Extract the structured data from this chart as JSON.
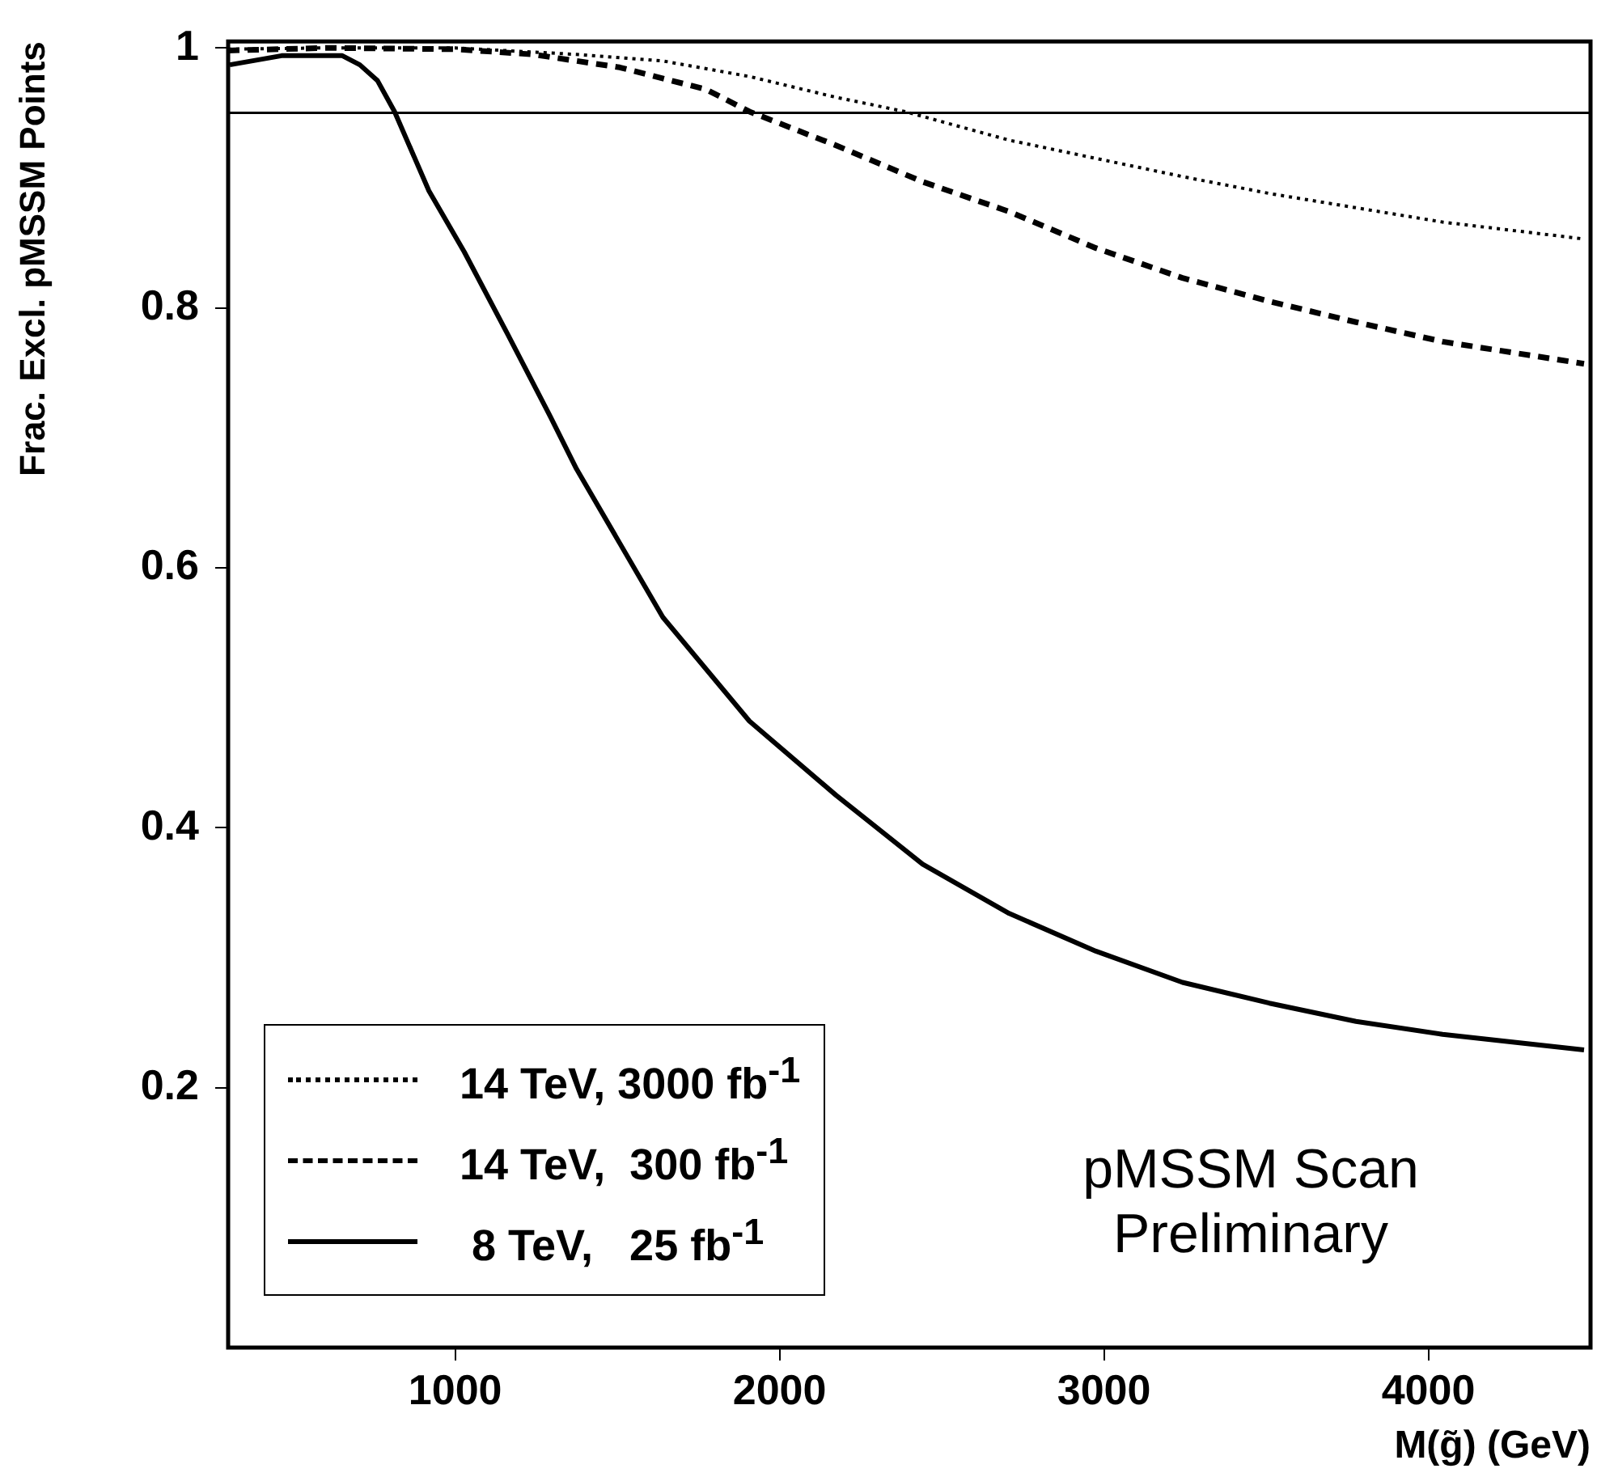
{
  "chart_data": {
    "type": "line",
    "xlabel": "M(g̃) (GeV)",
    "ylabel": "Frac. Excl. pMSSM Points",
    "xlim": [
      300,
      4500
    ],
    "xticks": [
      1000,
      2000,
      3000,
      4000
    ],
    "ylim": [
      0,
      1.005
    ],
    "yticks": [
      0.2,
      0.4,
      0.6,
      0.8,
      1
    ],
    "grid": false,
    "legend": "bottom left",
    "marker": "none",
    "ref_lines": [
      {
        "axis": "y",
        "value": 0.95,
        "color": "#000000"
      }
    ],
    "annotations": [
      "pMSSM Scan Preliminary"
    ],
    "series": [
      {
        "name": "14 TeV, 3000 fb$^{-1}$",
        "color": "#000000",
        "line_style": "dotted",
        "x": [
          300,
          600,
          1000,
          1374,
          1640,
          1907,
          2174,
          2387,
          2708,
          2975,
          3242,
          3510,
          3777,
          4044,
          4480
        ],
        "values": [
          0.999,
          1.0,
          1.0,
          0.995,
          0.99,
          0.978,
          0.962,
          0.951,
          0.929,
          0.915,
          0.901,
          0.888,
          0.877,
          0.866,
          0.853
        ]
      },
      {
        "name": "14 TeV,  300 fb$^{-1}$",
        "color": "#000000",
        "line_style": "dashed",
        "x": [
          300,
          600,
          1000,
          1240,
          1507,
          1774,
          1907,
          2174,
          2441,
          2708,
          2975,
          3242,
          3510,
          3777,
          4044,
          4480
        ],
        "values": [
          0.998,
          1.0,
          0.999,
          0.995,
          0.985,
          0.968,
          0.951,
          0.925,
          0.897,
          0.874,
          0.846,
          0.823,
          0.805,
          0.789,
          0.774,
          0.757
        ]
      },
      {
        "name": " 8 TeV,   25 fb$^{-1}$",
        "color": "#000000",
        "line_style": "solid",
        "x": [
          305,
          465,
          652,
          706,
          760,
          813,
          919,
          1028,
          1161,
          1294,
          1374,
          1640,
          1907,
          2174,
          2441,
          2708,
          2975,
          3242,
          3510,
          3777,
          4044,
          4480
        ],
        "values": [
          0.987,
          0.994,
          0.994,
          0.987,
          0.975,
          0.951,
          0.89,
          0.843,
          0.78,
          0.716,
          0.676,
          0.562,
          0.482,
          0.425,
          0.372,
          0.334,
          0.305,
          0.281,
          0.265,
          0.251,
          0.241,
          0.229
        ]
      }
    ]
  }
}
